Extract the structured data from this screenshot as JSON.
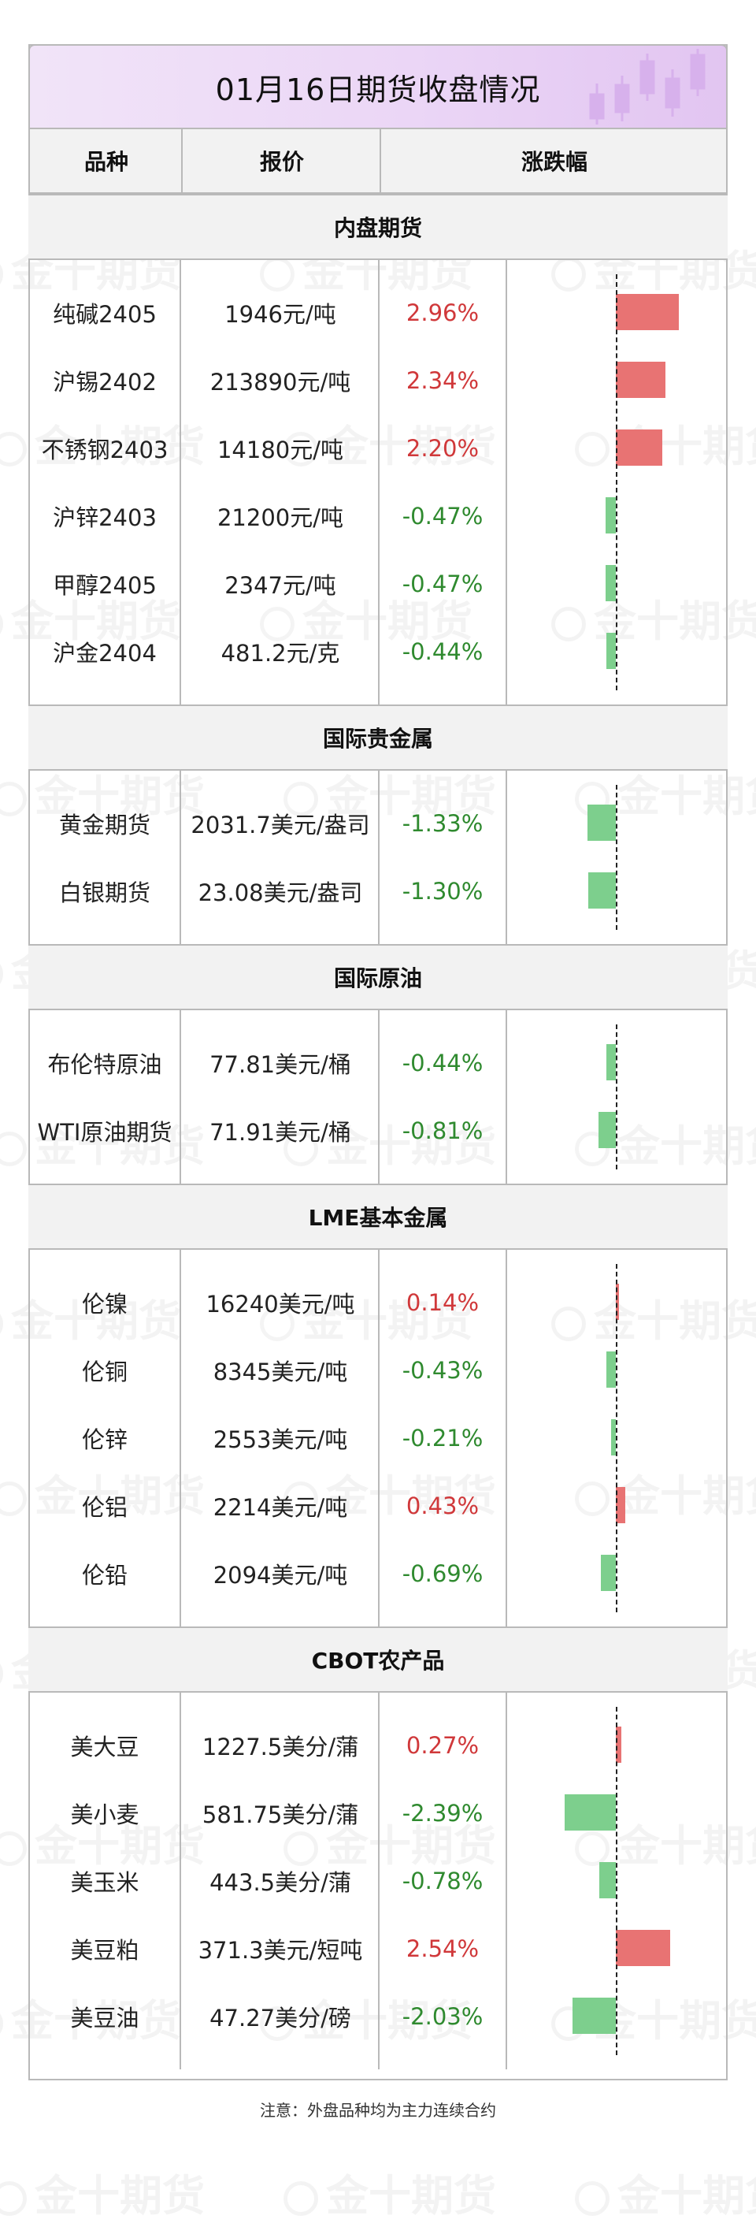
{
  "title": "01月16日期货收盘情况",
  "watermark": "金十期货",
  "header": {
    "name": "品种",
    "price": "报价",
    "change": "涨跌幅"
  },
  "chart_data": {
    "type": "bar",
    "orientation": "horizontal",
    "unit": "%",
    "colors": {
      "up": "#e87373",
      "down": "#7dcf8d",
      "up_text": "#d0383a",
      "down_text": "#2f8a2f"
    },
    "groups": [
      {
        "title": "内盘期货",
        "rows": [
          {
            "name": "纯碱2405",
            "price": "1946元/吨",
            "change_text": "2.96%",
            "value": 2.96
          },
          {
            "name": "沪锡2402",
            "price": "213890元/吨",
            "change_text": "2.34%",
            "value": 2.34
          },
          {
            "name": "不锈钢2403",
            "price": "14180元/吨",
            "change_text": "2.20%",
            "value": 2.2
          },
          {
            "name": "沪锌2403",
            "price": "21200元/吨",
            "change_text": "-0.47%",
            "value": -0.47
          },
          {
            "name": "甲醇2405",
            "price": "2347元/吨",
            "change_text": "-0.47%",
            "value": -0.47
          },
          {
            "name": "沪金2404",
            "price": "481.2元/克",
            "change_text": "-0.44%",
            "value": -0.44
          }
        ]
      },
      {
        "title": "国际贵金属",
        "rows": [
          {
            "name": "黄金期货",
            "price": "2031.7美元/盎司",
            "change_text": "-1.33%",
            "value": -1.33
          },
          {
            "name": "白银期货",
            "price": "23.08美元/盎司",
            "change_text": "-1.30%",
            "value": -1.3
          }
        ]
      },
      {
        "title": "国际原油",
        "rows": [
          {
            "name": "布伦特原油",
            "price": "77.81美元/桶",
            "change_text": "-0.44%",
            "value": -0.44
          },
          {
            "name": "WTI原油期货",
            "price": "71.91美元/桶",
            "change_text": "-0.81%",
            "value": -0.81
          }
        ]
      },
      {
        "title": "LME基本金属",
        "rows": [
          {
            "name": "伦镍",
            "price": "16240美元/吨",
            "change_text": "0.14%",
            "value": 0.14
          },
          {
            "name": "伦铜",
            "price": "8345美元/吨",
            "change_text": "-0.43%",
            "value": -0.43
          },
          {
            "name": "伦锌",
            "price": "2553美元/吨",
            "change_text": "-0.21%",
            "value": -0.21
          },
          {
            "name": "伦铝",
            "price": "2214美元/吨",
            "change_text": "0.43%",
            "value": 0.43
          },
          {
            "name": "伦铅",
            "price": "2094美元/吨",
            "change_text": "-0.69%",
            "value": -0.69
          }
        ]
      },
      {
        "title": "CBOT农产品",
        "rows": [
          {
            "name": "美大豆",
            "price": "1227.5美分/蒲",
            "change_text": "0.27%",
            "value": 0.27
          },
          {
            "name": "美小麦",
            "price": "581.75美分/蒲",
            "change_text": "-2.39%",
            "value": -2.39
          },
          {
            "name": "美玉米",
            "price": "443.5美分/蒲",
            "change_text": "-0.78%",
            "value": -0.78
          },
          {
            "name": "美豆粕",
            "price": "371.3美元/短吨",
            "change_text": "2.54%",
            "value": 2.54
          },
          {
            "name": "美豆油",
            "price": "47.27美分/磅",
            "change_text": "-2.03%",
            "value": -2.03
          }
        ]
      }
    ]
  },
  "footer_note": "注意：外盘品种均为主力连续合约"
}
